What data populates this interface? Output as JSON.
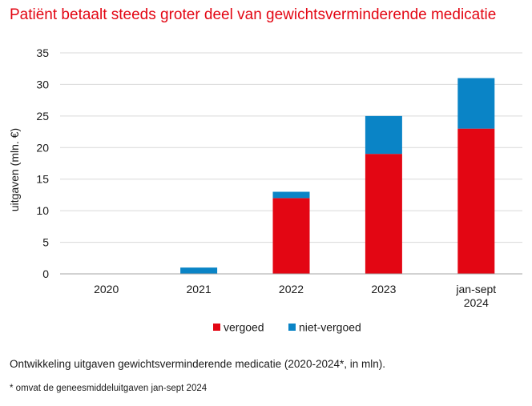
{
  "chart_data": {
    "type": "bar",
    "stacked": true,
    "title": "Patiënt betaalt steeds groter deel van gewichtsverminderende medicatie",
    "ylabel": "uitgaven (mln. €)",
    "xlabel": "",
    "ylim": [
      0,
      35
    ],
    "yticks": [
      0,
      5,
      10,
      15,
      20,
      25,
      30,
      35
    ],
    "categories": [
      [
        "2020"
      ],
      [
        "2021"
      ],
      [
        "2022"
      ],
      [
        "2023"
      ],
      [
        "jan-sept",
        "2024"
      ]
    ],
    "series": [
      {
        "name": "vergoed",
        "color": "#e30613",
        "values": [
          0,
          0,
          12,
          19,
          23
        ]
      },
      {
        "name": "niet-vergoed",
        "color": "#0a84c6",
        "values": [
          0,
          1,
          1,
          6,
          8
        ]
      }
    ],
    "grid": true,
    "legend_position": "bottom-center",
    "caption": "Ontwikkeling uitgaven gewichtsverminderende medicatie (2020-2024*, in mln).",
    "footnote": "* omvat de geneesmiddeluitgaven jan-sept 2024",
    "colors": {
      "title": "#e30613",
      "grid": "#d9d9d9",
      "axis": "#a6a6a6",
      "text": "#1a1a1a"
    }
  }
}
